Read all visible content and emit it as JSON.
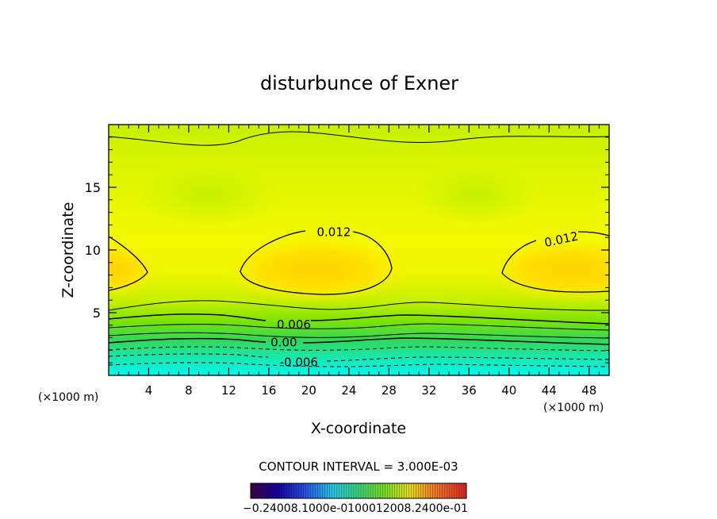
{
  "chart_data": {
    "type": "heatmap",
    "title": "disturbunce of Exner",
    "xlabel": "X-coordinate",
    "ylabel": "Z-coordinate",
    "x_unit_left": "(×1000 m)",
    "x_unit_right": "(×1000 m)",
    "xlim": [
      0,
      50
    ],
    "ylim": [
      0,
      20
    ],
    "x_ticks": [
      4,
      8,
      12,
      16,
      20,
      24,
      28,
      32,
      36,
      40,
      44,
      48
    ],
    "y_ticks": [
      5,
      10,
      15
    ],
    "contour_labels": [
      {
        "text": "0.012",
        "x": 22.5,
        "z": 11.5
      },
      {
        "text": "0.012",
        "x": 45.2,
        "z": 10.9
      },
      {
        "text": "0.006",
        "x": 18.5,
        "z": 4.1
      },
      {
        "text": "0.00",
        "x": 17.5,
        "z": 2.7
      },
      {
        "text": "-0.006",
        "x": 19.0,
        "z": 1.1
      }
    ],
    "contour_interval_text": "CONTOUR INTERVAL = 3.000E-03",
    "colorbar_labels_text": "−0.24008.1000e-0100012008.2400e-01"
  }
}
